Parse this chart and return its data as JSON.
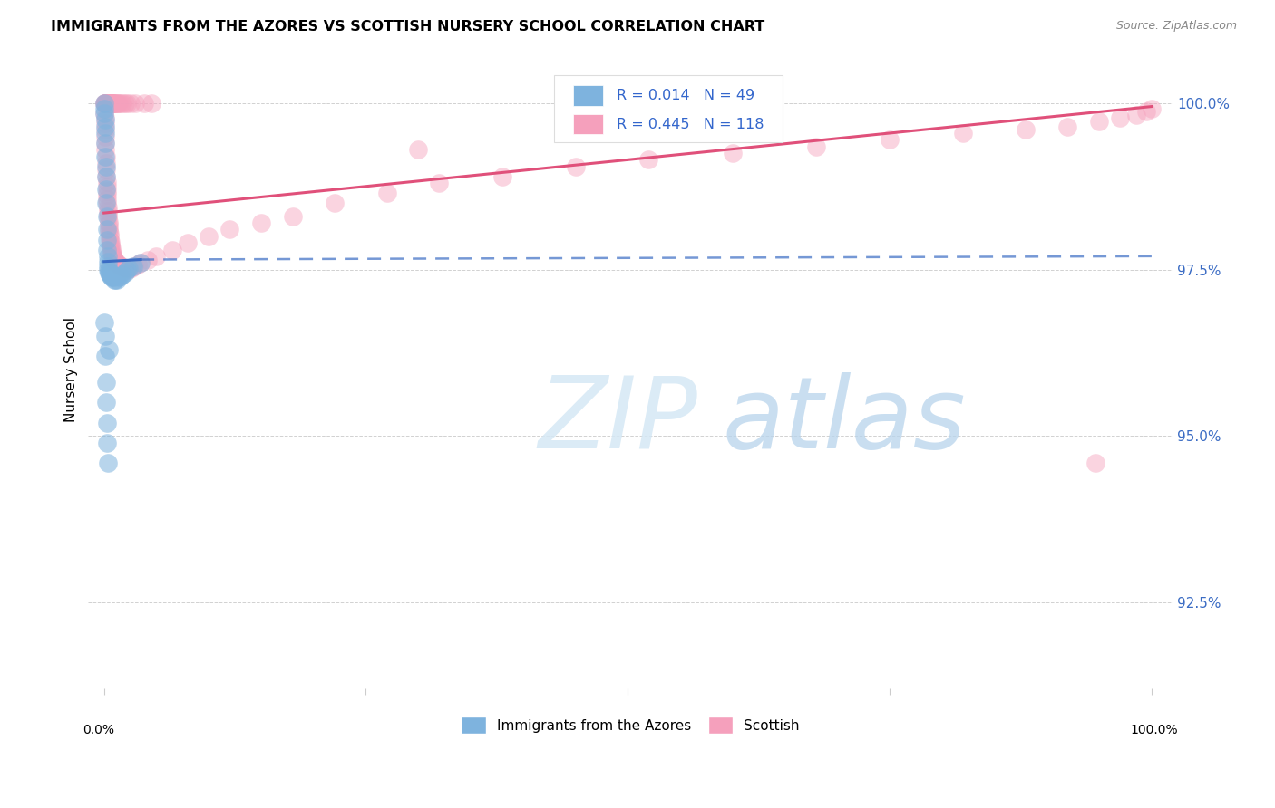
{
  "title": "IMMIGRANTS FROM THE AZORES VS SCOTTISH NURSERY SCHOOL CORRELATION CHART",
  "source": "Source: ZipAtlas.com",
  "ylabel": "Nursery School",
  "legend_label_blue": "Immigrants from the Azores",
  "legend_label_pink": "Scottish",
  "R_blue": 0.014,
  "N_blue": 49,
  "R_pink": 0.445,
  "N_pink": 118,
  "blue_color": "#7EB3DE",
  "pink_color": "#F5A0BC",
  "blue_line_color": "#3B6CC4",
  "pink_line_color": "#E0507A",
  "y_ticks": [
    92.5,
    95.0,
    97.5,
    100.0
  ],
  "y_tick_labels": [
    "92.5%",
    "95.0%",
    "97.5%",
    "100.0%"
  ],
  "ylim_low": 91.2,
  "ylim_high": 100.8,
  "xlim_low": -1.5,
  "xlim_high": 102.0,
  "blue_scatter_x": [
    0.05,
    0.05,
    0.05,
    0.1,
    0.1,
    0.1,
    0.15,
    0.15,
    0.2,
    0.2,
    0.2,
    0.2,
    0.25,
    0.25,
    0.3,
    0.3,
    0.35,
    0.35,
    0.4,
    0.4,
    0.45,
    0.5,
    0.55,
    0.6,
    0.65,
    0.7,
    0.8,
    0.85,
    0.9,
    1.0,
    1.1,
    1.2,
    1.4,
    1.6,
    1.8,
    2.0,
    2.2,
    2.4,
    2.8,
    3.5,
    0.05,
    0.08,
    0.12,
    0.18,
    0.22,
    0.28,
    0.32,
    0.38,
    0.42
  ],
  "blue_scatter_y": [
    100.0,
    99.92,
    99.85,
    99.75,
    99.65,
    99.55,
    99.4,
    99.2,
    99.05,
    98.9,
    98.7,
    98.5,
    98.3,
    98.1,
    97.95,
    97.8,
    97.7,
    97.62,
    97.55,
    97.5,
    97.48,
    97.45,
    97.42,
    97.42,
    97.4,
    97.38,
    97.4,
    97.42,
    97.38,
    97.35,
    97.35,
    97.35,
    97.38,
    97.4,
    97.42,
    97.45,
    97.5,
    97.52,
    97.55,
    97.6,
    96.7,
    96.5,
    96.2,
    95.8,
    95.5,
    95.2,
    94.9,
    94.6,
    96.3
  ],
  "pink_scatter_x": [
    0.05,
    0.08,
    0.1,
    0.1,
    0.12,
    0.15,
    0.15,
    0.18,
    0.2,
    0.2,
    0.22,
    0.25,
    0.25,
    0.28,
    0.3,
    0.3,
    0.32,
    0.35,
    0.35,
    0.38,
    0.4,
    0.42,
    0.45,
    0.48,
    0.5,
    0.52,
    0.55,
    0.58,
    0.6,
    0.62,
    0.65,
    0.68,
    0.7,
    0.75,
    0.8,
    0.85,
    0.9,
    0.95,
    1.0,
    1.05,
    1.1,
    1.2,
    1.3,
    1.4,
    1.5,
    1.7,
    1.9,
    2.1,
    2.3,
    2.6,
    2.9,
    3.2,
    3.5,
    4.2,
    5.0,
    6.5,
    8.0,
    10.0,
    12.0,
    15.0,
    18.0,
    22.0,
    27.0,
    32.0,
    38.0,
    45.0,
    52.0,
    60.0,
    68.0,
    75.0,
    82.0,
    88.0,
    92.0,
    95.0,
    97.0,
    98.5,
    99.5,
    100.0,
    0.05,
    0.06,
    0.08,
    0.1,
    0.12,
    0.15,
    0.17,
    0.2,
    0.22,
    0.25,
    0.28,
    0.32,
    0.36,
    0.4,
    0.45,
    0.5,
    0.55,
    0.6,
    0.65,
    0.7,
    0.75,
    0.8,
    0.85,
    0.9,
    0.95,
    1.0,
    1.1,
    1.2,
    1.3,
    1.4,
    1.6,
    1.8,
    2.0,
    2.2,
    2.5,
    3.0,
    3.8,
    4.5,
    30.0,
    94.6
  ],
  "pink_scatter_y": [
    99.85,
    99.78,
    99.7,
    99.6,
    99.5,
    99.4,
    99.3,
    99.2,
    99.1,
    99.0,
    98.9,
    98.82,
    98.75,
    98.68,
    98.62,
    98.55,
    98.5,
    98.44,
    98.38,
    98.32,
    98.28,
    98.22,
    98.18,
    98.12,
    98.08,
    98.04,
    98.0,
    97.95,
    97.92,
    97.88,
    97.85,
    97.82,
    97.78,
    97.75,
    97.72,
    97.7,
    97.68,
    97.65,
    97.65,
    97.62,
    97.62,
    97.6,
    97.58,
    97.58,
    97.55,
    97.55,
    97.52,
    97.52,
    97.5,
    97.52,
    97.55,
    97.58,
    97.6,
    97.65,
    97.7,
    97.8,
    97.9,
    98.0,
    98.1,
    98.2,
    98.3,
    98.5,
    98.65,
    98.8,
    98.9,
    99.05,
    99.15,
    99.25,
    99.35,
    99.45,
    99.55,
    99.6,
    99.65,
    99.72,
    99.78,
    99.82,
    99.88,
    99.92,
    100.0,
    100.0,
    100.0,
    100.0,
    100.0,
    100.0,
    100.0,
    100.0,
    100.0,
    100.0,
    100.0,
    100.0,
    100.0,
    100.0,
    100.0,
    100.0,
    100.0,
    100.0,
    100.0,
    100.0,
    100.0,
    100.0,
    100.0,
    100.0,
    100.0,
    100.0,
    100.0,
    100.0,
    100.0,
    100.0,
    100.0,
    100.0,
    100.0,
    100.0,
    100.0,
    100.0,
    100.0,
    100.0,
    99.3,
    94.6
  ],
  "blue_trend_start_x": 0.0,
  "blue_trend_end_x": 100.0,
  "blue_solid_end_x": 3.5,
  "blue_trend_y_at_0": 97.62,
  "blue_trend_y_at_35": 97.65,
  "blue_trend_y_at_100": 97.7,
  "pink_trend_y_at_0": 98.35,
  "pink_trend_y_at_100": 99.95
}
